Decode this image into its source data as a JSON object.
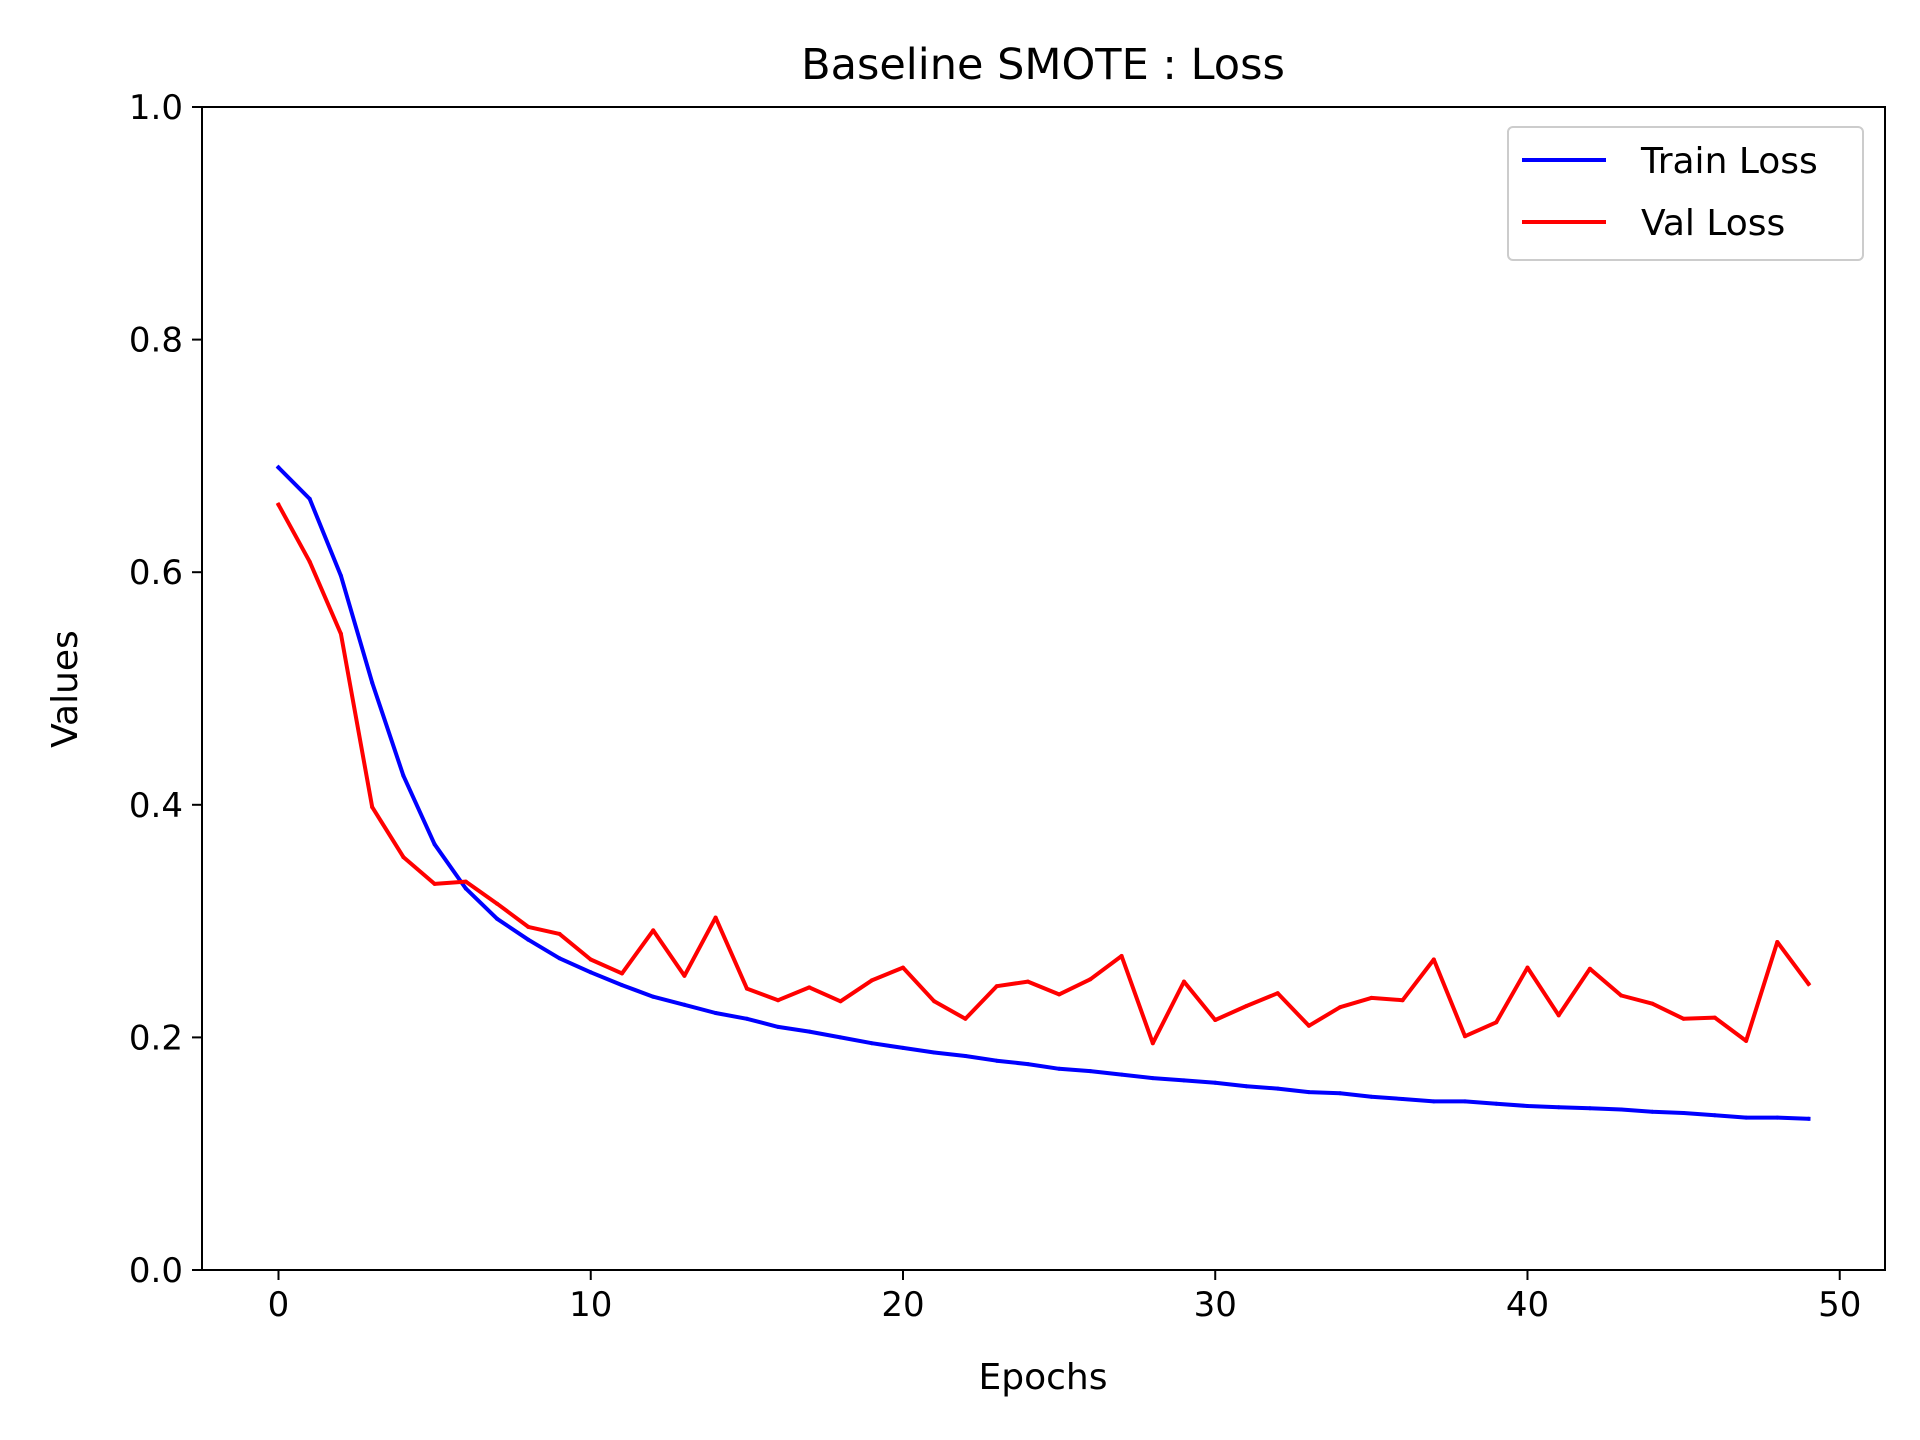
{
  "chart_data": {
    "type": "line",
    "title": "Baseline SMOTE : Loss",
    "xlabel": "Epochs",
    "ylabel": "Values",
    "xlim": [
      -2.45,
      51.45
    ],
    "ylim": [
      0.0,
      1.0
    ],
    "xticks": [
      0,
      10,
      20,
      30,
      40,
      50
    ],
    "xtick_labels": [
      "0",
      "10",
      "20",
      "30",
      "40",
      "50"
    ],
    "yticks": [
      0.0,
      0.2,
      0.4,
      0.6,
      0.8,
      1.0
    ],
    "ytick_labels": [
      "0.0",
      "0.2",
      "0.4",
      "0.6",
      "0.8",
      "1.0"
    ],
    "grid": false,
    "legend_position": "top-right",
    "x": [
      0,
      1,
      2,
      3,
      4,
      5,
      6,
      7,
      8,
      9,
      10,
      11,
      12,
      13,
      14,
      15,
      16,
      17,
      18,
      19,
      20,
      21,
      22,
      23,
      24,
      25,
      26,
      27,
      28,
      29,
      30,
      31,
      32,
      33,
      34,
      35,
      36,
      37,
      38,
      39,
      40,
      41,
      42,
      43,
      44,
      45,
      46,
      47,
      48,
      49
    ],
    "series": [
      {
        "name": "Train Loss",
        "color": "#0000ff",
        "values": [
          0.69,
          0.663,
          0.597,
          0.505,
          0.425,
          0.366,
          0.328,
          0.302,
          0.284,
          0.268,
          0.256,
          0.245,
          0.235,
          0.228,
          0.221,
          0.216,
          0.209,
          0.205,
          0.2,
          0.195,
          0.191,
          0.187,
          0.184,
          0.18,
          0.177,
          0.173,
          0.171,
          0.168,
          0.165,
          0.163,
          0.161,
          0.158,
          0.156,
          0.153,
          0.152,
          0.149,
          0.147,
          0.145,
          0.145,
          0.143,
          0.141,
          0.14,
          0.139,
          0.138,
          0.136,
          0.135,
          0.133,
          0.131,
          0.131,
          0.13
        ]
      },
      {
        "name": "Val Loss",
        "color": "#ff0000",
        "values": [
          0.658,
          0.609,
          0.547,
          0.398,
          0.355,
          0.332,
          0.334,
          0.315,
          0.295,
          0.289,
          0.267,
          0.255,
          0.292,
          0.253,
          0.303,
          0.242,
          0.232,
          0.243,
          0.231,
          0.249,
          0.26,
          0.231,
          0.216,
          0.244,
          0.248,
          0.237,
          0.25,
          0.27,
          0.195,
          0.248,
          0.215,
          0.227,
          0.238,
          0.21,
          0.226,
          0.234,
          0.232,
          0.267,
          0.201,
          0.213,
          0.26,
          0.219,
          0.259,
          0.236,
          0.229,
          0.216,
          0.217,
          0.197,
          0.282,
          0.246
        ]
      }
    ]
  }
}
